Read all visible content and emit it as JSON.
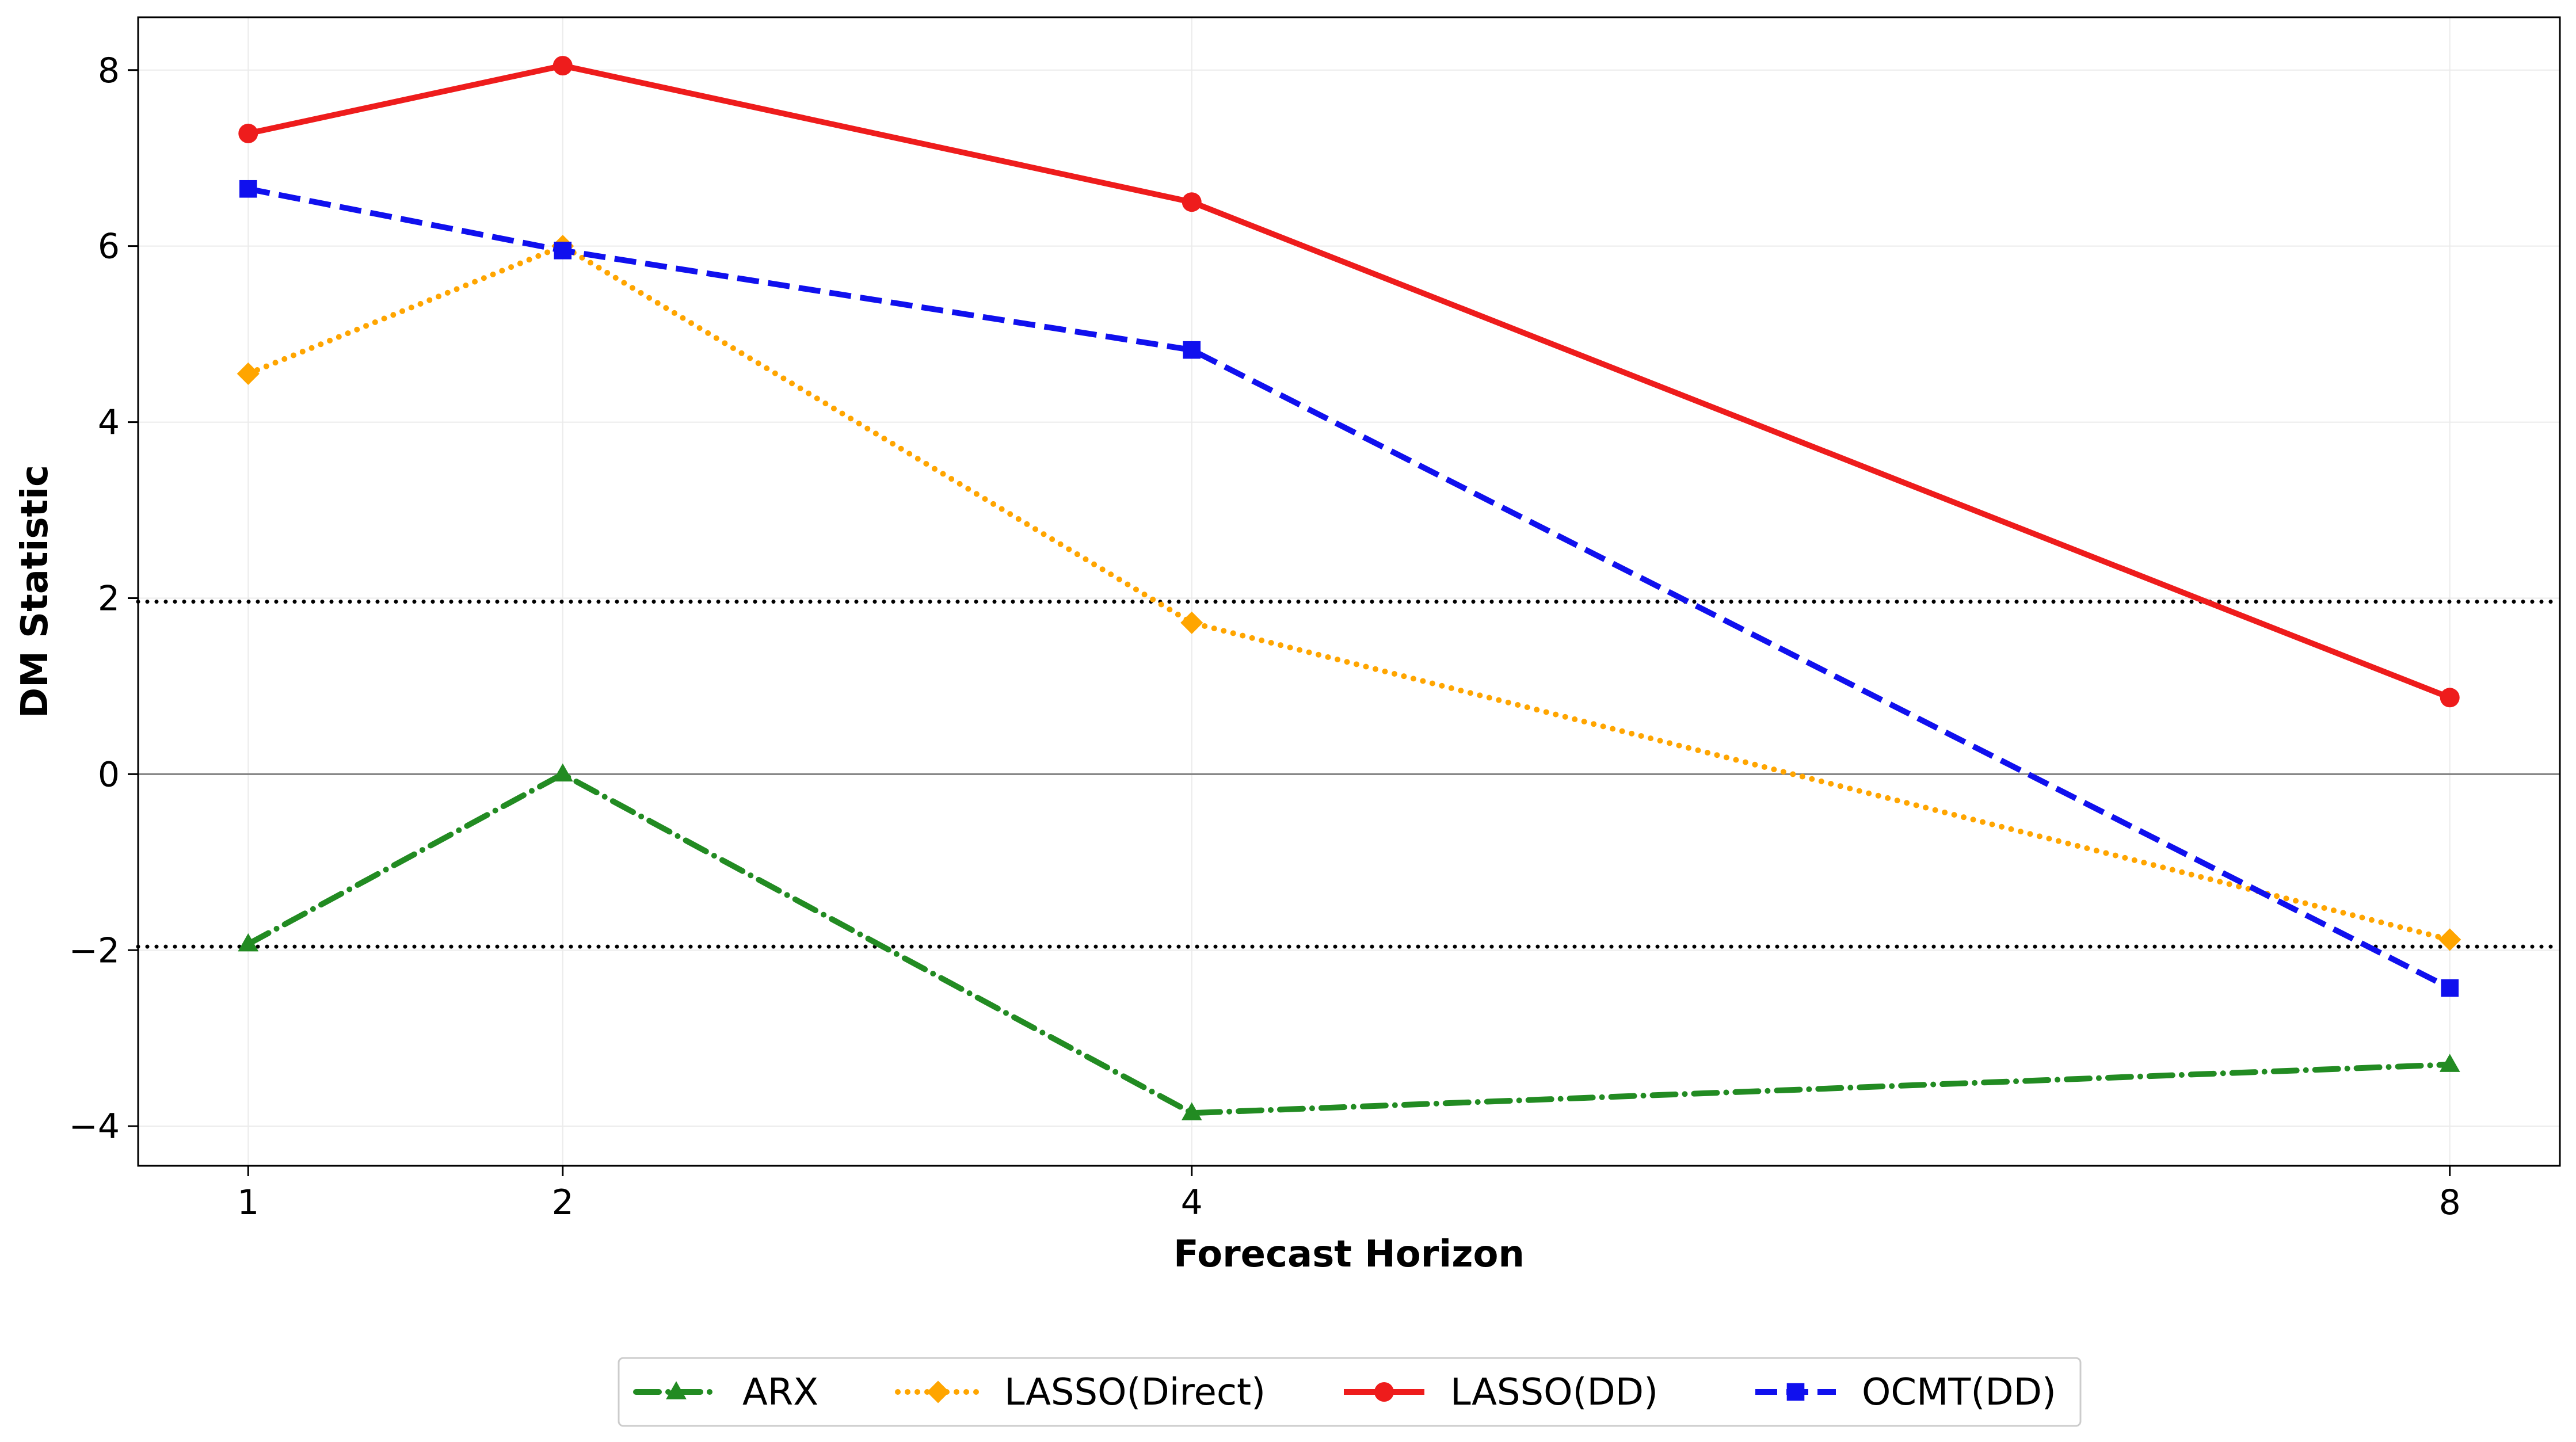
{
  "chart_data": {
    "type": "line",
    "title": "",
    "xlabel": "Forecast Horizon",
    "ylabel": "DM Statistic",
    "x": [
      1,
      2,
      4,
      8
    ],
    "xticks": [
      1,
      2,
      4,
      8
    ],
    "yticks": [
      -4,
      -2,
      0,
      2,
      4,
      6,
      8
    ],
    "ytick_labels": [
      "−4",
      "−2",
      "0",
      "2",
      "4",
      "6",
      "8"
    ],
    "xlim": [
      0.65,
      8.35
    ],
    "ylim": [
      -4.45,
      8.6
    ],
    "grid": true,
    "legend_position": "bottom-center",
    "reference_lines": [
      {
        "y": 1.96,
        "style": "dotted",
        "color": "#000000"
      },
      {
        "y": -1.96,
        "style": "dotted",
        "color": "#000000"
      },
      {
        "y": 0,
        "style": "solid",
        "color": "#808080"
      }
    ],
    "series": [
      {
        "name": "ARX",
        "values": [
          -1.93,
          0.0,
          -3.85,
          -3.3
        ],
        "color": "#228B22",
        "dash": "dashdot",
        "marker": "triangle"
      },
      {
        "name": "LASSO(Direct)",
        "values": [
          4.55,
          6.0,
          1.72,
          -1.88
        ],
        "color": "#FFA500",
        "dash": "dotted",
        "marker": "diamond"
      },
      {
        "name": "LASSO(DD)",
        "values": [
          7.28,
          8.05,
          6.5,
          0.87
        ],
        "color": "#EE1C1C",
        "dash": "solid",
        "marker": "circle"
      },
      {
        "name": "OCMT(DD)",
        "values": [
          6.65,
          5.95,
          4.82,
          -2.43
        ],
        "color": "#1010EE",
        "dash": "dashed",
        "marker": "square"
      }
    ]
  }
}
